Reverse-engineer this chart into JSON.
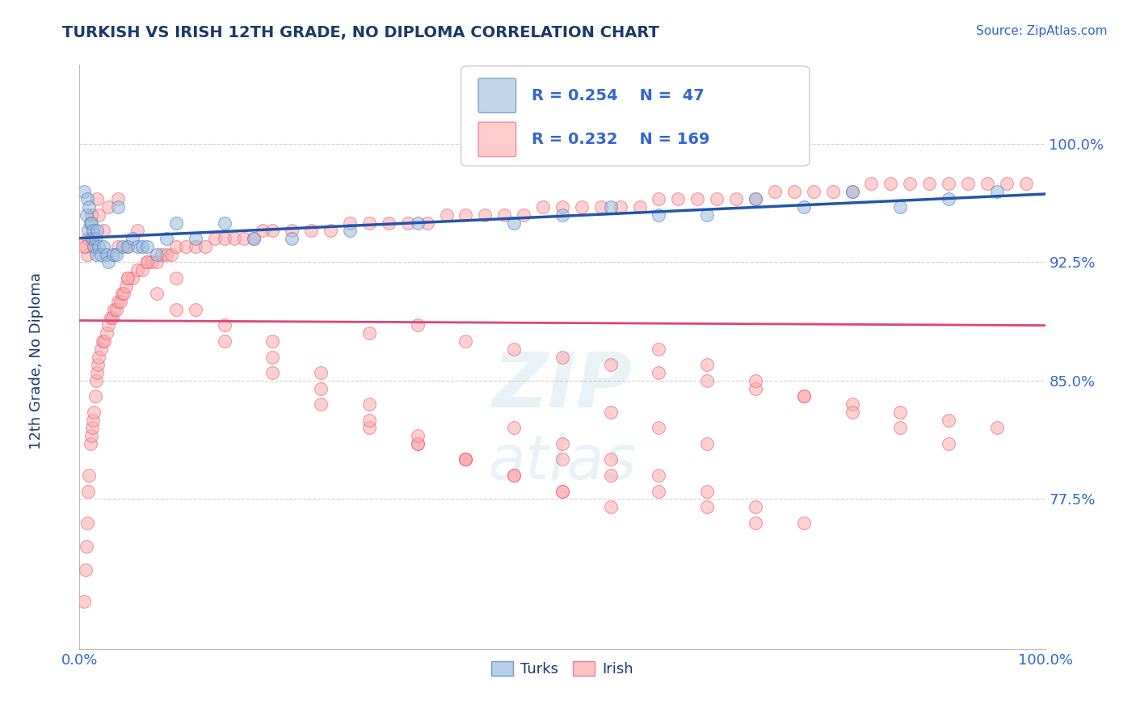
{
  "title": "TURKISH VS IRISH 12TH GRADE, NO DIPLOMA CORRELATION CHART",
  "ylabel": "12th Grade, No Diploma",
  "source_text": "Source: ZipAtlas.com",
  "x_min": 0.0,
  "x_max": 1.0,
  "y_min": 0.68,
  "y_max": 1.05,
  "yticks": [
    0.775,
    0.85,
    0.925,
    1.0
  ],
  "ytick_labels": [
    "77.5%",
    "85.0%",
    "92.5%",
    "100.0%"
  ],
  "xtick_labels": [
    "0.0%",
    "100.0%"
  ],
  "xticks": [
    0.0,
    1.0
  ],
  "grid_color": "#cccccc",
  "title_color": "#1a3a6b",
  "axis_label_color": "#1a3a6b",
  "tick_label_color": "#3366cc",
  "background_color": "#ffffff",
  "blue_face_color": "#99bbdd",
  "pink_face_color": "#ffaaaa",
  "blue_edge_color": "#4477bb",
  "pink_edge_color": "#dd5577",
  "blue_line_color": "#2255aa",
  "pink_line_color": "#dd4477",
  "legend_R_blue": "R = 0.254",
  "legend_N_blue": "N =  47",
  "legend_R_pink": "R = 0.232",
  "legend_N_pink": "N = 169",
  "watermark_line1": "ZIP",
  "watermark_line2": "atlas",
  "turks_x": [
    0.005,
    0.007,
    0.008,
    0.009,
    0.01,
    0.011,
    0.012,
    0.013,
    0.014,
    0.015,
    0.016,
    0.017,
    0.018,
    0.02,
    0.022,
    0.025,
    0.028,
    0.03,
    0.035,
    0.038,
    0.04,
    0.045,
    0.05,
    0.055,
    0.06,
    0.065,
    0.07,
    0.08,
    0.09,
    0.1,
    0.12,
    0.15,
    0.18,
    0.22,
    0.28,
    0.35,
    0.45,
    0.5,
    0.55,
    0.6,
    0.65,
    0.7,
    0.75,
    0.8,
    0.85,
    0.9,
    0.95
  ],
  "turks_y": [
    0.97,
    0.955,
    0.965,
    0.945,
    0.96,
    0.95,
    0.95,
    0.94,
    0.945,
    0.935,
    0.94,
    0.93,
    0.945,
    0.935,
    0.93,
    0.935,
    0.93,
    0.925,
    0.93,
    0.93,
    0.96,
    0.935,
    0.935,
    0.94,
    0.935,
    0.935,
    0.935,
    0.93,
    0.94,
    0.95,
    0.94,
    0.95,
    0.94,
    0.94,
    0.945,
    0.95,
    0.95,
    0.955,
    0.96,
    0.955,
    0.955,
    0.965,
    0.96,
    0.97,
    0.96,
    0.965,
    0.97
  ],
  "irish_x": [
    0.005,
    0.006,
    0.007,
    0.008,
    0.009,
    0.01,
    0.011,
    0.012,
    0.013,
    0.014,
    0.015,
    0.016,
    0.017,
    0.018,
    0.019,
    0.02,
    0.022,
    0.024,
    0.026,
    0.028,
    0.03,
    0.032,
    0.034,
    0.036,
    0.038,
    0.04,
    0.042,
    0.044,
    0.046,
    0.048,
    0.05,
    0.055,
    0.06,
    0.065,
    0.07,
    0.075,
    0.08,
    0.085,
    0.09,
    0.095,
    0.1,
    0.11,
    0.12,
    0.13,
    0.14,
    0.15,
    0.16,
    0.17,
    0.18,
    0.19,
    0.2,
    0.22,
    0.24,
    0.26,
    0.28,
    0.3,
    0.32,
    0.34,
    0.36,
    0.38,
    0.4,
    0.42,
    0.44,
    0.46,
    0.48,
    0.5,
    0.52,
    0.54,
    0.56,
    0.58,
    0.6,
    0.62,
    0.64,
    0.66,
    0.68,
    0.7,
    0.72,
    0.74,
    0.76,
    0.78,
    0.8,
    0.82,
    0.84,
    0.86,
    0.88,
    0.9,
    0.92,
    0.94,
    0.96,
    0.98,
    0.3,
    0.35,
    0.4,
    0.45,
    0.5,
    0.55,
    0.6,
    0.65,
    0.7,
    0.75,
    0.8,
    0.85,
    0.9,
    0.95,
    0.6,
    0.65,
    0.7,
    0.75,
    0.8,
    0.85,
    0.9,
    0.55,
    0.6,
    0.65,
    0.45,
    0.5,
    0.55,
    0.6,
    0.65,
    0.7,
    0.75,
    0.5,
    0.55,
    0.6,
    0.65,
    0.7,
    0.4,
    0.45,
    0.5,
    0.55,
    0.35,
    0.4,
    0.45,
    0.5,
    0.3,
    0.35,
    0.4,
    0.25,
    0.3,
    0.35,
    0.2,
    0.25,
    0.3,
    0.15,
    0.2,
    0.25,
    0.1,
    0.15,
    0.2,
    0.05,
    0.08,
    0.12,
    0.05,
    0.07,
    0.1,
    0.04,
    0.06,
    0.02,
    0.03,
    0.04,
    0.015,
    0.025,
    0.012,
    0.018,
    0.008,
    0.012,
    0.006,
    0.009,
    0.005
  ],
  "irish_y": [
    0.71,
    0.73,
    0.745,
    0.76,
    0.78,
    0.79,
    0.81,
    0.815,
    0.82,
    0.825,
    0.83,
    0.84,
    0.85,
    0.855,
    0.86,
    0.865,
    0.87,
    0.875,
    0.875,
    0.88,
    0.885,
    0.89,
    0.89,
    0.895,
    0.895,
    0.9,
    0.9,
    0.905,
    0.905,
    0.91,
    0.915,
    0.915,
    0.92,
    0.92,
    0.925,
    0.925,
    0.925,
    0.93,
    0.93,
    0.93,
    0.935,
    0.935,
    0.935,
    0.935,
    0.94,
    0.94,
    0.94,
    0.94,
    0.94,
    0.945,
    0.945,
    0.945,
    0.945,
    0.945,
    0.95,
    0.95,
    0.95,
    0.95,
    0.95,
    0.955,
    0.955,
    0.955,
    0.955,
    0.955,
    0.96,
    0.96,
    0.96,
    0.96,
    0.96,
    0.96,
    0.965,
    0.965,
    0.965,
    0.965,
    0.965,
    0.965,
    0.97,
    0.97,
    0.97,
    0.97,
    0.97,
    0.975,
    0.975,
    0.975,
    0.975,
    0.975,
    0.975,
    0.975,
    0.975,
    0.975,
    0.88,
    0.885,
    0.875,
    0.87,
    0.865,
    0.86,
    0.855,
    0.85,
    0.845,
    0.84,
    0.835,
    0.83,
    0.825,
    0.82,
    0.87,
    0.86,
    0.85,
    0.84,
    0.83,
    0.82,
    0.81,
    0.83,
    0.82,
    0.81,
    0.82,
    0.81,
    0.8,
    0.79,
    0.78,
    0.77,
    0.76,
    0.8,
    0.79,
    0.78,
    0.77,
    0.76,
    0.8,
    0.79,
    0.78,
    0.77,
    0.81,
    0.8,
    0.79,
    0.78,
    0.82,
    0.81,
    0.8,
    0.835,
    0.825,
    0.815,
    0.855,
    0.845,
    0.835,
    0.875,
    0.865,
    0.855,
    0.895,
    0.885,
    0.875,
    0.915,
    0.905,
    0.895,
    0.935,
    0.925,
    0.915,
    0.935,
    0.945,
    0.955,
    0.96,
    0.965,
    0.935,
    0.945,
    0.955,
    0.965,
    0.93,
    0.94,
    0.935,
    0.94,
    0.935
  ]
}
